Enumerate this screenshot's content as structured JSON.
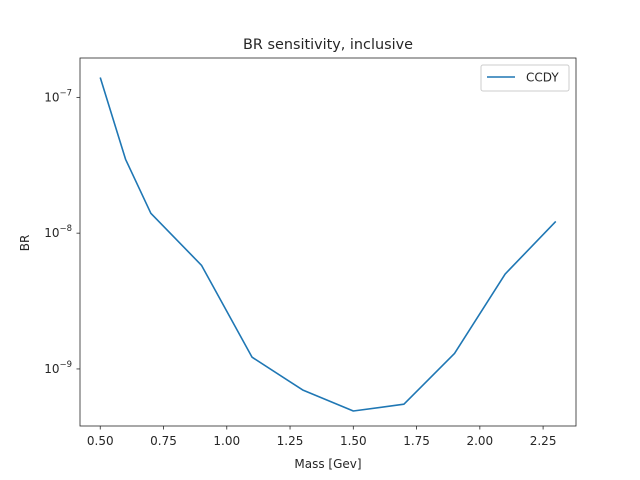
{
  "chart_data": {
    "type": "line",
    "title": "BR sensitivity, inclusive",
    "xlabel": "Mass [Gev]",
    "ylabel": "BR",
    "xlim": [
      0.42,
      2.38
    ],
    "ylim": [
      3.8e-10,
      1.95e-07
    ],
    "yscale": "log",
    "grid": false,
    "legend_position": "top-right",
    "x_ticks": [
      {
        "value": 0.5,
        "label": "0.50"
      },
      {
        "value": 0.75,
        "label": "0.75"
      },
      {
        "value": 1.0,
        "label": "1.00"
      },
      {
        "value": 1.25,
        "label": "1.25"
      },
      {
        "value": 1.5,
        "label": "1.50"
      },
      {
        "value": 1.75,
        "label": "1.75"
      },
      {
        "value": 2.0,
        "label": "2.00"
      },
      {
        "value": 2.25,
        "label": "2.25"
      }
    ],
    "y_ticks": [
      {
        "value": 1e-09,
        "base": "10",
        "exp": "−9"
      },
      {
        "value": 1e-08,
        "base": "10",
        "exp": "−8"
      },
      {
        "value": 1e-07,
        "base": "10",
        "exp": "−7"
      }
    ],
    "series": [
      {
        "name": "CCDY",
        "color": "#1f77b4",
        "x": [
          0.5,
          0.6,
          0.7,
          0.9,
          1.1,
          1.3,
          1.5,
          1.7,
          1.9,
          2.1,
          2.3
        ],
        "y": [
          1.4e-07,
          3.5e-08,
          1.4e-08,
          5.8e-09,
          1.22e-09,
          7e-10,
          4.9e-10,
          5.5e-10,
          1.3e-09,
          5e-09,
          1.22e-08
        ]
      }
    ]
  }
}
